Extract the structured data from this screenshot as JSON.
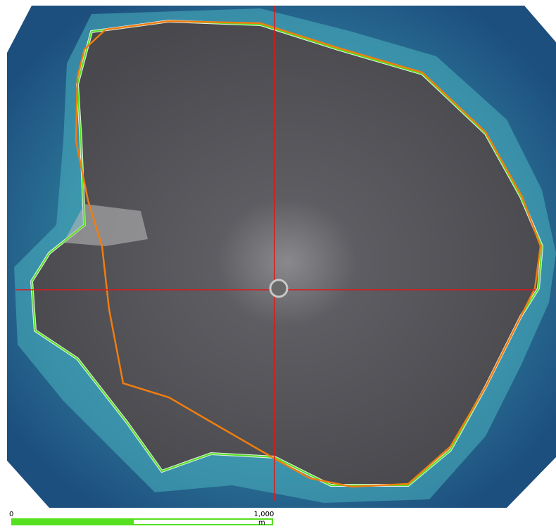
{
  "scale_bar": {
    "start_label": "0",
    "end_label": "1,000",
    "unit": "m"
  }
}
